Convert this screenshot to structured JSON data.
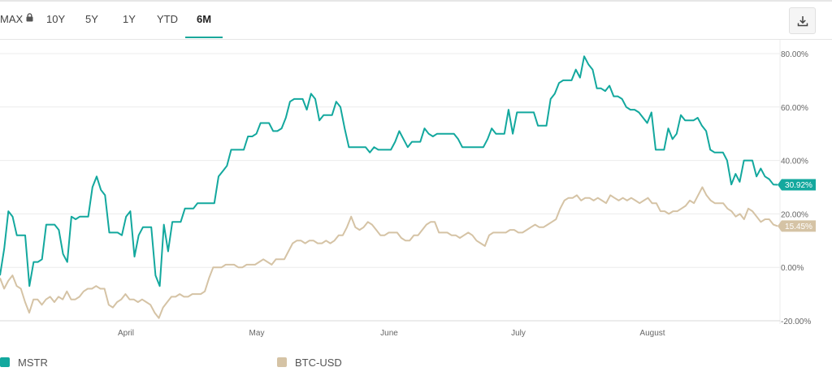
{
  "toolbar": {
    "tabs": [
      {
        "label": "MAX",
        "locked": true
      },
      {
        "label": "10Y"
      },
      {
        "label": "5Y"
      },
      {
        "label": "1Y"
      },
      {
        "label": "YTD"
      },
      {
        "label": "6M",
        "active": true
      }
    ],
    "download_icon": "download-icon",
    "lock_icon": "lock-icon"
  },
  "colors": {
    "mstr": "#13a89e",
    "btc": "#d5c3a5",
    "active_tab": "#1aa89b"
  },
  "chart_data": {
    "type": "line",
    "x_tick_labels": [
      "April",
      "May",
      "June",
      "July",
      "August"
    ],
    "y_tick_labels": [
      "80.00%",
      "60.00%",
      "40.00%",
      "20.00%",
      "0.00%",
      "-20.00%"
    ],
    "ylim": [
      -20,
      85
    ],
    "grid": true,
    "last_value_labels": [
      "30.92%",
      "15.45%"
    ],
    "series": [
      {
        "name": "MSTR",
        "color": "#13a89e",
        "values": [
          -3,
          7,
          21,
          19,
          12,
          12,
          12,
          -7,
          2,
          2,
          3,
          16,
          16,
          16,
          14,
          5,
          2,
          19,
          18,
          19,
          19,
          19,
          30,
          34,
          29,
          27,
          13,
          13,
          13,
          12,
          19,
          21,
          4,
          12,
          15,
          15,
          15,
          -3,
          -7,
          16,
          6,
          17,
          17,
          17,
          22,
          22,
          22,
          24,
          24,
          24,
          24,
          24,
          34,
          36,
          38,
          44,
          44,
          44,
          44,
          49,
          49,
          50,
          54,
          54,
          54,
          51,
          51,
          52,
          56,
          62,
          63,
          63,
          63,
          59,
          65,
          63,
          55,
          57,
          57,
          57,
          62,
          60,
          52,
          45,
          45,
          45,
          45,
          45,
          43,
          45,
          44,
          44,
          44,
          44,
          47,
          51,
          48,
          45,
          47,
          47,
          47,
          52,
          50,
          49,
          50,
          50,
          50,
          50,
          50,
          48,
          45,
          45,
          45,
          45,
          45,
          45,
          48,
          52,
          50,
          50,
          50,
          59,
          50,
          58,
          58,
          58,
          58,
          58,
          53,
          53,
          53,
          63,
          65,
          69,
          70,
          70,
          70,
          74,
          71,
          79,
          76,
          74,
          67,
          67,
          66,
          68,
          64,
          64,
          63,
          60,
          59,
          59,
          58,
          56,
          54,
          58,
          44,
          44,
          44,
          52,
          48,
          50,
          57,
          55,
          55,
          55,
          56,
          53,
          51,
          44,
          43,
          43,
          43,
          40,
          31,
          35,
          32,
          40,
          40,
          40,
          34,
          37,
          34,
          33,
          31,
          30.92
        ]
      },
      {
        "name": "BTC-USD",
        "color": "#d5c3a5",
        "values": [
          -4,
          -8,
          -5,
          -3,
          -7,
          -8,
          -13,
          -17,
          -12,
          -12,
          -14,
          -12,
          -11,
          -13,
          -11,
          -12,
          -9,
          -12,
          -12,
          -11,
          -9,
          -8,
          -8,
          -7,
          -8,
          -8,
          -14,
          -15,
          -13,
          -12,
          -10,
          -12,
          -12,
          -13,
          -12,
          -13,
          -14,
          -17,
          -19,
          -15,
          -13,
          -11,
          -11,
          -10,
          -11,
          -11,
          -10,
          -10,
          -10,
          -9,
          -4,
          0,
          0,
          0,
          1,
          1,
          1,
          0,
          0,
          1,
          1,
          1,
          2,
          3,
          2,
          1,
          3,
          3,
          3,
          6,
          9,
          10,
          10,
          9,
          10,
          10,
          9,
          9,
          10,
          9,
          10,
          12,
          12,
          15,
          19,
          15,
          14,
          15,
          17,
          16,
          14,
          12,
          12,
          13,
          13,
          13,
          11,
          10,
          10,
          12,
          12,
          14,
          16,
          17,
          17,
          13,
          13,
          13,
          12,
          12,
          11,
          12,
          13,
          12,
          10,
          9,
          8,
          12,
          13,
          13,
          13,
          13,
          14,
          14,
          13,
          13,
          14,
          15,
          16,
          15,
          15,
          16,
          17,
          18,
          22,
          25,
          26,
          26,
          27,
          25,
          26,
          26,
          25,
          26,
          25,
          24,
          27,
          26,
          25,
          26,
          25,
          26,
          25,
          24,
          25,
          26,
          24,
          24,
          21,
          21,
          20,
          21,
          21,
          22,
          23,
          25,
          24,
          27,
          30,
          27,
          25,
          24,
          24,
          24,
          22,
          21,
          19,
          20,
          18,
          22,
          21,
          19,
          17,
          18,
          18,
          16,
          15.45
        ]
      }
    ]
  }
}
